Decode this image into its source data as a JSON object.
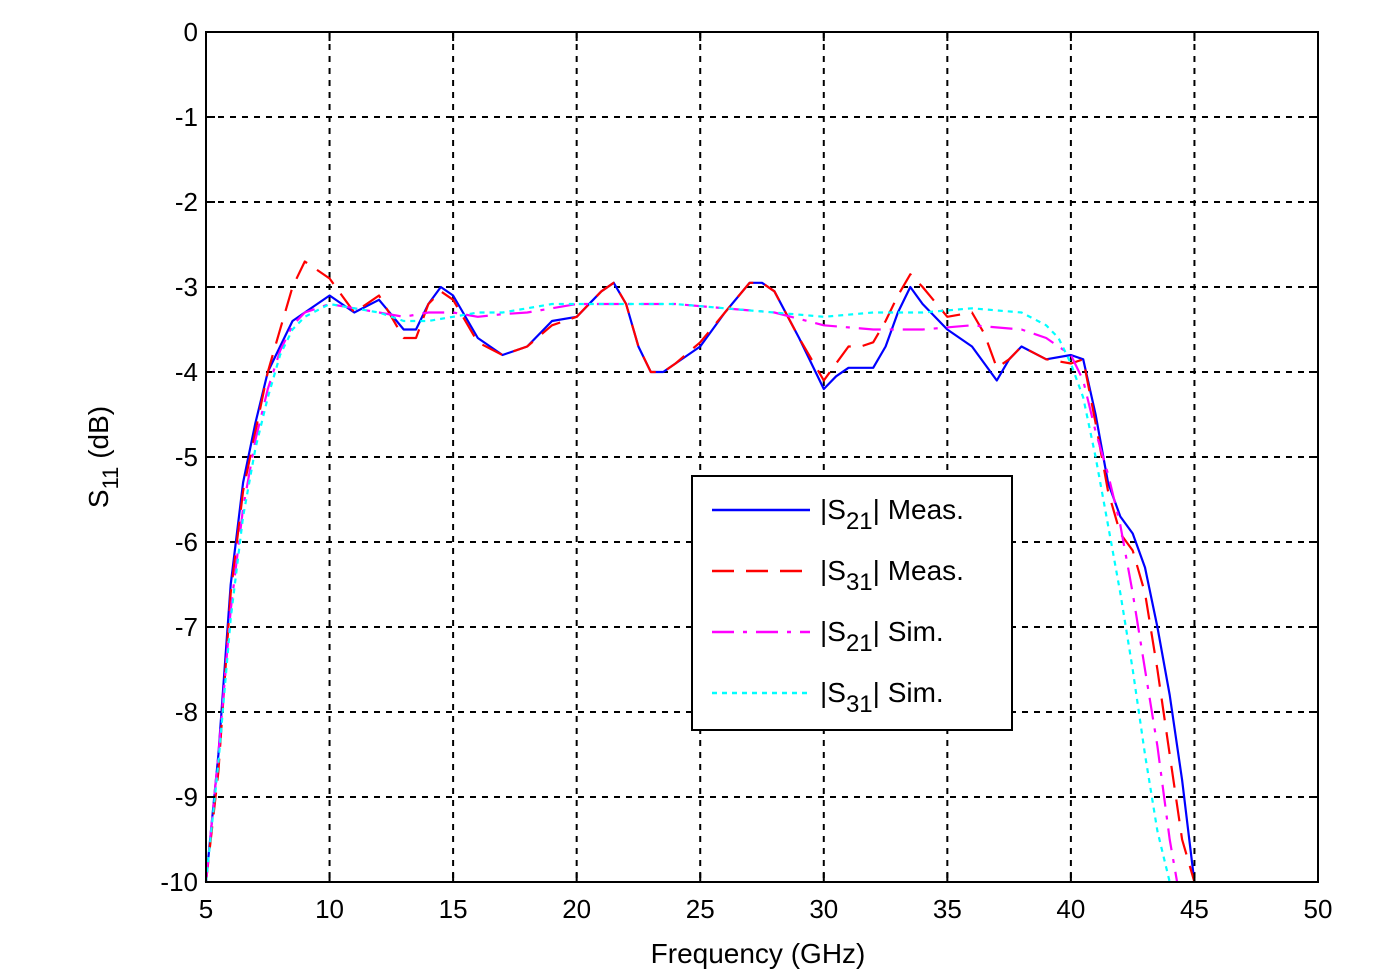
{
  "chart_data": {
    "type": "line",
    "title": "",
    "xlabel": "Frequency (GHz)",
    "ylabel": {
      "main": "S",
      "sub": "11",
      "unit": " (dB)"
    },
    "xlim": [
      5,
      50
    ],
    "ylim": [
      -10,
      0
    ],
    "xticks": [
      5,
      10,
      15,
      20,
      25,
      30,
      35,
      40,
      45,
      50
    ],
    "yticks": [
      0,
      -1,
      -2,
      -3,
      -4,
      -5,
      -6,
      -7,
      -8,
      -9,
      -10
    ],
    "grid": true,
    "legend_position": "center-right",
    "series": [
      {
        "name": "|S21| Meas.",
        "legend": {
          "prefix": "|S",
          "sub": "21",
          "suffix": "| Meas."
        },
        "color": "#0000ff",
        "style": "solid",
        "x": [
          5.0,
          5.5,
          6.0,
          6.5,
          7.0,
          7.5,
          8.0,
          8.5,
          9.0,
          9.5,
          10.0,
          10.5,
          11.0,
          12.0,
          13.0,
          13.5,
          14.0,
          14.5,
          15.0,
          16.0,
          17.0,
          18.0,
          19.0,
          20.0,
          21.0,
          21.5,
          22.0,
          22.5,
          23.0,
          23.5,
          24.0,
          25.0,
          26.0,
          27.0,
          27.5,
          28.0,
          29.0,
          30.0,
          30.5,
          31.0,
          31.5,
          32.0,
          32.5,
          33.0,
          33.5,
          34.0,
          35.0,
          36.0,
          37.0,
          37.5,
          38.0,
          39.0,
          40.0,
          40.5,
          41.0,
          41.5,
          42.0,
          42.5,
          43.0,
          43.5,
          44.0,
          44.5,
          45.0
        ],
        "y": [
          -10.0,
          -8.5,
          -6.5,
          -5.3,
          -4.6,
          -4.0,
          -3.7,
          -3.4,
          -3.3,
          -3.2,
          -3.1,
          -3.2,
          -3.3,
          -3.15,
          -3.5,
          -3.5,
          -3.2,
          -3.0,
          -3.1,
          -3.6,
          -3.8,
          -3.7,
          -3.4,
          -3.35,
          -3.05,
          -2.95,
          -3.2,
          -3.7,
          -4.0,
          -4.0,
          -3.9,
          -3.7,
          -3.3,
          -2.95,
          -2.95,
          -3.05,
          -3.6,
          -4.2,
          -4.05,
          -3.95,
          -3.95,
          -3.95,
          -3.7,
          -3.3,
          -3.0,
          -3.2,
          -3.5,
          -3.7,
          -4.1,
          -3.85,
          -3.7,
          -3.85,
          -3.8,
          -3.85,
          -4.5,
          -5.3,
          -5.7,
          -5.9,
          -6.3,
          -7.0,
          -7.8,
          -8.8,
          -10.0
        ]
      },
      {
        "name": "|S31| Meas.",
        "legend": {
          "prefix": "|S",
          "sub": "31",
          "suffix": "| Meas."
        },
        "color": "#ff0000",
        "style": "dashed",
        "x": [
          5.0,
          5.5,
          6.0,
          6.5,
          7.0,
          7.5,
          8.0,
          8.5,
          9.0,
          9.5,
          10.0,
          10.5,
          11.0,
          12.0,
          13.0,
          13.5,
          14.0,
          14.5,
          15.0,
          16.0,
          17.0,
          18.0,
          19.0,
          20.0,
          21.0,
          21.5,
          22.0,
          22.5,
          23.0,
          23.5,
          24.0,
          25.0,
          26.0,
          27.0,
          27.5,
          28.0,
          29.0,
          30.0,
          30.5,
          31.0,
          31.5,
          32.0,
          32.5,
          33.0,
          33.5,
          34.0,
          35.0,
          36.0,
          36.5,
          37.0,
          37.5,
          38.0,
          39.0,
          40.0,
          40.5,
          41.0,
          41.5,
          42.0,
          42.5,
          43.0,
          43.5,
          44.0,
          44.5,
          45.0
        ],
        "y": [
          -10.0,
          -8.7,
          -6.6,
          -5.4,
          -4.7,
          -4.0,
          -3.5,
          -3.0,
          -2.7,
          -2.8,
          -2.9,
          -3.1,
          -3.3,
          -3.1,
          -3.6,
          -3.6,
          -3.2,
          -3.05,
          -3.15,
          -3.65,
          -3.8,
          -3.7,
          -3.45,
          -3.35,
          -3.05,
          -2.95,
          -3.2,
          -3.7,
          -4.0,
          -4.0,
          -3.9,
          -3.65,
          -3.3,
          -2.95,
          -2.95,
          -3.05,
          -3.6,
          -4.1,
          -3.9,
          -3.7,
          -3.7,
          -3.65,
          -3.4,
          -3.1,
          -2.85,
          -3.0,
          -3.35,
          -3.3,
          -3.55,
          -3.95,
          -3.85,
          -3.7,
          -3.85,
          -3.9,
          -3.85,
          -4.6,
          -5.4,
          -5.9,
          -6.1,
          -6.6,
          -7.5,
          -8.5,
          -9.5,
          -10.0
        ]
      },
      {
        "name": "|S21| Sim.",
        "legend": {
          "prefix": "|S",
          "sub": "21",
          "suffix": "| Sim."
        },
        "color": "#ff00ff",
        "style": "dashdot",
        "x": [
          5.0,
          5.5,
          6.0,
          6.5,
          7.0,
          7.5,
          8.0,
          8.5,
          9.0,
          10.0,
          11.0,
          12.0,
          13.0,
          14.0,
          15.0,
          16.0,
          17.0,
          18.0,
          19.0,
          20.0,
          22.0,
          24.0,
          26.0,
          28.0,
          30.0,
          32.0,
          34.0,
          36.0,
          38.0,
          39.0,
          40.0,
          40.5,
          41.0,
          41.5,
          42.0,
          42.5,
          43.0,
          43.5,
          44.0,
          44.3
        ],
        "y": [
          -10.0,
          -8.5,
          -6.8,
          -5.6,
          -4.8,
          -4.2,
          -3.75,
          -3.45,
          -3.3,
          -3.2,
          -3.25,
          -3.3,
          -3.35,
          -3.3,
          -3.3,
          -3.35,
          -3.32,
          -3.3,
          -3.25,
          -3.2,
          -3.2,
          -3.2,
          -3.25,
          -3.3,
          -3.45,
          -3.5,
          -3.5,
          -3.45,
          -3.5,
          -3.6,
          -3.8,
          -4.1,
          -4.7,
          -5.2,
          -5.8,
          -6.6,
          -7.5,
          -8.4,
          -9.5,
          -10.0
        ]
      },
      {
        "name": "|S31| Sim.",
        "legend": {
          "prefix": "|S",
          "sub": "31",
          "suffix": "| Sim."
        },
        "color": "#00ffff",
        "style": "dotted",
        "x": [
          5.0,
          5.5,
          6.0,
          6.5,
          7.0,
          7.5,
          8.0,
          8.5,
          9.0,
          10.0,
          11.0,
          12.0,
          13.0,
          14.0,
          15.0,
          16.0,
          17.0,
          18.0,
          19.0,
          20.0,
          22.0,
          24.0,
          26.0,
          28.0,
          30.0,
          32.0,
          34.0,
          36.0,
          38.0,
          39.0,
          39.5,
          40.0,
          40.5,
          41.0,
          41.5,
          42.0,
          42.5,
          43.0,
          43.5,
          44.0
        ],
        "y": [
          -10.0,
          -8.6,
          -6.9,
          -5.7,
          -4.9,
          -4.3,
          -3.8,
          -3.5,
          -3.35,
          -3.2,
          -3.25,
          -3.3,
          -3.4,
          -3.4,
          -3.35,
          -3.3,
          -3.3,
          -3.25,
          -3.2,
          -3.2,
          -3.2,
          -3.2,
          -3.25,
          -3.3,
          -3.35,
          -3.3,
          -3.3,
          -3.25,
          -3.3,
          -3.45,
          -3.6,
          -3.9,
          -4.3,
          -5.0,
          -5.8,
          -6.6,
          -7.5,
          -8.5,
          -9.4,
          -10.0
        ]
      }
    ]
  }
}
